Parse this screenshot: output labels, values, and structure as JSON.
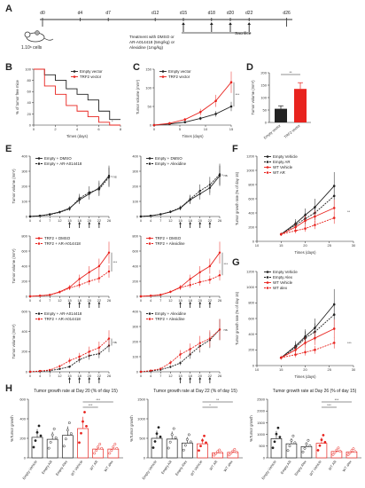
{
  "labels": {
    "A": "A",
    "B": "B",
    "C": "C",
    "D": "D",
    "E": "E",
    "F": "F",
    "G": "G",
    "H": "H"
  },
  "timeline": {
    "days": [
      "d0",
      "d4",
      "d7",
      "d12",
      "d15",
      "d18",
      "d20",
      "d22",
      "d26"
    ],
    "cells": "1.10⁶ cells",
    "treatment_line1": "Treatment with DMSO or",
    "treatment_line2": "AR-A014418 (5mg/kg) or",
    "treatment_line3": "Alexidine (1mg/kg)",
    "sacrifice": "Sacrifice"
  },
  "colors": {
    "black": "#222222",
    "red": "#e8231e",
    "grey": "#999999"
  },
  "stats": {
    "ns": "ns",
    "s1": "*",
    "s2": "**",
    "s3": "***"
  },
  "panelB": {
    "ylabel": "% of tumor free mice",
    "xlabel": "Times (days)",
    "legend": [
      "Empty vector",
      "TRF2 vector"
    ]
  },
  "panelC": {
    "ylabel": "Tumor volume (mm³)",
    "xlabel": "Times (days)",
    "legend": [
      "Empty vector",
      "TRF2 vector"
    ]
  },
  "panelD": {
    "ylabel": "Tumor volume (mm³)",
    "categories": [
      "Empty vector",
      "TRF2 vector"
    ]
  },
  "panelE": {
    "ylabel": "Tumor volume (mm³)",
    "xticks": [
      "0",
      "4",
      "7",
      "12",
      "15",
      "18",
      "20",
      "22",
      "26"
    ],
    "plots": [
      {
        "legend": [
          "Empty + DMSO",
          "Empty + AR-A014418"
        ]
      },
      {
        "legend": [
          "Empty + DMSO",
          "Empty + Alexidine"
        ]
      },
      {
        "legend": [
          "TRF2 + DMSO",
          "TRF2 + AR-A014418"
        ]
      },
      {
        "legend": [
          "TRF2 + DMSO",
          "TRF2 + Alexidine"
        ]
      },
      {
        "legend": [
          "Empty + AR-A014418",
          "TRF2 + AR-A014418"
        ]
      },
      {
        "legend": [
          "Empty + Alexidine",
          "TRF2 + Alexidine"
        ]
      }
    ]
  },
  "panelF": {
    "ylabel": "Tumor growth rate (% of day 15)",
    "xlabel": "Times (days)",
    "legend": [
      "Empty Vehicle",
      "Empty AR",
      "WT Vehicle",
      "WT AR"
    ]
  },
  "panelG": {
    "ylabel": "Tumor growth rate (% of day 15)",
    "xlabel": "Times (days)",
    "legend": [
      "Empty Vehicle",
      "Empty Alex",
      "WT Vehicle",
      "WT alex"
    ]
  },
  "panelH": {
    "ylabel": "%Tumor growth",
    "titles": [
      "Tumor growth rate at Day 20 (% of day 15)",
      "Tumor growth rate at Day 22 (% of day 15)",
      "Tumor growth rate at Day 26 (% of day 15)"
    ],
    "categories": [
      "Empty Vehicle",
      "Empty AR",
      "Empty Alex",
      "WT Vehicle",
      "WT AR",
      "WT alex"
    ]
  },
  "chart_data": [
    {
      "id": "B",
      "type": "line",
      "x": [
        0,
        1,
        2,
        3,
        4,
        5,
        6,
        7,
        8
      ],
      "xlim": [
        0,
        8
      ],
      "ylim": [
        0,
        100
      ],
      "xticks": [
        0,
        2,
        4,
        6,
        8
      ],
      "yticks": [
        0,
        20,
        40,
        60,
        80,
        100
      ],
      "series": [
        {
          "name": "Empty vector",
          "values": [
            100,
            90,
            80,
            65,
            55,
            45,
            25,
            10,
            10
          ]
        },
        {
          "name": "TRF2 vector",
          "values": [
            100,
            70,
            55,
            35,
            25,
            15,
            5,
            0,
            0
          ]
        }
      ]
    },
    {
      "id": "C",
      "type": "line",
      "x": [
        0,
        3,
        6,
        9,
        12,
        15
      ],
      "xlim": [
        0,
        15
      ],
      "ylim": [
        0,
        150
      ],
      "xticks": [
        0,
        5,
        10,
        15
      ],
      "yticks": [
        0,
        50,
        100,
        150
      ],
      "series": [
        {
          "name": "Empty vector",
          "values": [
            0,
            3,
            8,
            18,
            30,
            50
          ]
        },
        {
          "name": "TRF2 vector",
          "values": [
            0,
            5,
            15,
            35,
            65,
            115
          ]
        }
      ]
    },
    {
      "id": "D",
      "type": "bar",
      "categories": [
        "Empty vector",
        "TRF2 vector"
      ],
      "values": [
        55,
        135
      ],
      "errors": [
        12,
        25
      ],
      "ylim": [
        0,
        200
      ],
      "yticks": [
        0,
        50,
        100,
        150,
        200
      ]
    },
    {
      "id": "E1",
      "type": "line",
      "x": [
        0,
        4,
        7,
        12,
        15,
        18,
        20,
        22,
        26
      ],
      "xticks": [
        0,
        4,
        7,
        12,
        15,
        18,
        20,
        22,
        26
      ],
      "ylim": [
        0,
        400
      ],
      "yticks": [
        0,
        100,
        200,
        300,
        400
      ],
      "series": [
        {
          "name": "Empty + DMSO",
          "values": [
            0,
            5,
            15,
            30,
            55,
            110,
            150,
            190,
            270
          ]
        },
        {
          "name": "Empty + AR-A014418",
          "values": [
            0,
            5,
            12,
            28,
            50,
            120,
            160,
            180,
            260
          ]
        }
      ]
    },
    {
      "id": "E2",
      "type": "line",
      "x": [
        0,
        4,
        7,
        12,
        15,
        18,
        20,
        22,
        26
      ],
      "xticks": [
        0,
        4,
        7,
        12,
        15,
        18,
        20,
        22,
        26
      ],
      "ylim": [
        0,
        400
      ],
      "yticks": [
        0,
        100,
        200,
        300,
        400
      ],
      "series": [
        {
          "name": "Empty + DMSO",
          "values": [
            0,
            5,
            15,
            30,
            55,
            110,
            150,
            190,
            270
          ]
        },
        {
          "name": "Empty + Alexidine",
          "values": [
            0,
            5,
            14,
            32,
            58,
            115,
            170,
            210,
            280
          ]
        }
      ]
    },
    {
      "id": "E3",
      "type": "line",
      "x": [
        0,
        4,
        7,
        12,
        15,
        18,
        20,
        22,
        26
      ],
      "xticks": [
        0,
        4,
        7,
        12,
        15,
        18,
        20,
        22,
        26
      ],
      "ylim": [
        0,
        800
      ],
      "yticks": [
        0,
        200,
        400,
        600,
        800
      ],
      "series": [
        {
          "name": "TRF2 + DMSO",
          "values": [
            0,
            8,
            20,
            60,
            120,
            230,
            320,
            400,
            580
          ]
        },
        {
          "name": "TRF2 + AR-A014418",
          "values": [
            0,
            8,
            18,
            55,
            110,
            150,
            200,
            240,
            330
          ]
        }
      ]
    },
    {
      "id": "E4",
      "type": "line",
      "x": [
        0,
        4,
        7,
        12,
        15,
        18,
        20,
        22,
        26
      ],
      "xticks": [
        0,
        4,
        7,
        12,
        15,
        18,
        20,
        22,
        26
      ],
      "ylim": [
        0,
        800
      ],
      "yticks": [
        0,
        200,
        400,
        600,
        800
      ],
      "series": [
        {
          "name": "TRF2 + DMSO",
          "values": [
            0,
            8,
            20,
            60,
            120,
            230,
            320,
            400,
            580
          ]
        },
        {
          "name": "TRF2 + Alexidine",
          "values": [
            0,
            8,
            20,
            60,
            115,
            150,
            190,
            220,
            280
          ]
        }
      ]
    },
    {
      "id": "E5",
      "type": "line",
      "x": [
        0,
        4,
        7,
        12,
        15,
        18,
        20,
        22,
        26
      ],
      "xticks": [
        0,
        4,
        7,
        12,
        15,
        18,
        20,
        22,
        26
      ],
      "ylim": [
        0,
        600
      ],
      "yticks": [
        0,
        200,
        400,
        600
      ],
      "series": [
        {
          "name": "Empty + AR-A014418",
          "values": [
            0,
            5,
            12,
            28,
            50,
            120,
            160,
            180,
            260
          ]
        },
        {
          "name": "TRF2 + AR-A014418",
          "values": [
            0,
            8,
            18,
            55,
            110,
            150,
            200,
            240,
            330
          ]
        }
      ]
    },
    {
      "id": "E6",
      "type": "line",
      "x": [
        0,
        4,
        7,
        12,
        15,
        18,
        20,
        22,
        26
      ],
      "xticks": [
        0,
        4,
        7,
        12,
        15,
        18,
        20,
        22,
        26
      ],
      "ylim": [
        0,
        400
      ],
      "yticks": [
        0,
        100,
        200,
        300,
        400
      ],
      "series": [
        {
          "name": "Empty + Alexidine",
          "values": [
            0,
            5,
            14,
            32,
            58,
            115,
            170,
            210,
            280
          ]
        },
        {
          "name": "TRF2 + Alexidine",
          "values": [
            0,
            8,
            20,
            60,
            115,
            150,
            190,
            220,
            280
          ]
        }
      ]
    },
    {
      "id": "F",
      "type": "line",
      "x": [
        15,
        18,
        20,
        22,
        26
      ],
      "xlim": [
        10,
        30
      ],
      "xticks": [
        10,
        15,
        20,
        25,
        30
      ],
      "ylim": [
        0,
        1200
      ],
      "yticks": [
        0,
        200,
        400,
        600,
        800,
        1000,
        1200
      ],
      "series": [
        {
          "name": "Empty Vehicle",
          "values": [
            100,
            250,
            370,
            480,
            780
          ]
        },
        {
          "name": "Empty AR",
          "values": [
            100,
            230,
            320,
            400,
            640
          ]
        },
        {
          "name": "WT Vehicle",
          "values": [
            100,
            200,
            290,
            350,
            470
          ]
        },
        {
          "name": "WT AR",
          "values": [
            100,
            150,
            180,
            230,
            330
          ]
        }
      ]
    },
    {
      "id": "G",
      "type": "line",
      "x": [
        15,
        18,
        20,
        22,
        26
      ],
      "xlim": [
        10,
        30
      ],
      "xticks": [
        10,
        15,
        20,
        25,
        30
      ],
      "ylim": [
        0,
        1200
      ],
      "yticks": [
        0,
        200,
        400,
        600,
        800,
        1000,
        1200
      ],
      "series": [
        {
          "name": "Empty Vehicle",
          "values": [
            100,
            250,
            370,
            480,
            780
          ]
        },
        {
          "name": "Empty Alex",
          "values": [
            100,
            230,
            350,
            430,
            650
          ]
        },
        {
          "name": "WT Vehicle",
          "values": [
            100,
            200,
            290,
            350,
            470
          ]
        },
        {
          "name": "WT alex",
          "values": [
            100,
            140,
            170,
            200,
            290
          ]
        }
      ]
    },
    {
      "id": "H1",
      "type": "bar",
      "categories": [
        "Empty Vehicle",
        "Empty AR",
        "Empty Alex",
        "WT Vehicle",
        "WT AR",
        "WT alex"
      ],
      "values": [
        210,
        190,
        230,
        300,
        90,
        90
      ],
      "ylim": [
        0,
        600
      ],
      "yticks": [
        0,
        200,
        400,
        600
      ]
    },
    {
      "id": "H2",
      "type": "bar",
      "categories": [
        "Empty Vehicle",
        "Empty AR",
        "Empty Alex",
        "WT Vehicle",
        "WT AR",
        "WT alex"
      ],
      "values": [
        500,
        480,
        380,
        360,
        130,
        140
      ],
      "ylim": [
        0,
        1500
      ],
      "yticks": [
        0,
        500,
        1000,
        1500
      ]
    },
    {
      "id": "H3",
      "type": "bar",
      "categories": [
        "Empty Vehicle",
        "Empty AR",
        "Empty Alex",
        "WT Vehicle",
        "WT AR",
        "WT alex"
      ],
      "values": [
        820,
        600,
        480,
        620,
        270,
        250
      ],
      "ylim": [
        0,
        2500
      ],
      "yticks": [
        0,
        500,
        1000,
        1500,
        2000,
        2500
      ]
    }
  ]
}
